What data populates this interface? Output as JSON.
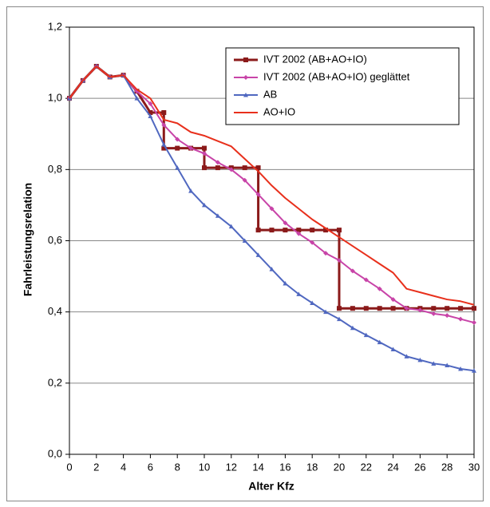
{
  "chart_data": {
    "type": "line",
    "xlabel": "Alter Kfz",
    "ylabel": "Fahrleistungsrelation",
    "xlim": [
      0,
      30
    ],
    "xticks": [
      0,
      2,
      4,
      6,
      8,
      10,
      12,
      14,
      16,
      18,
      20,
      22,
      24,
      26,
      28,
      30
    ],
    "ylim": [
      0,
      1.2
    ],
    "yticks": [
      {
        "value": 0,
        "label": "0,0"
      },
      {
        "value": 0.2,
        "label": "0,2"
      },
      {
        "value": 0.4,
        "label": "0,4"
      },
      {
        "value": 0.6,
        "label": "0,6"
      },
      {
        "value": 0.8,
        "label": "0,8"
      },
      {
        "value": 1.0,
        "label": "1,0"
      },
      {
        "value": 1.2,
        "label": "1,2"
      }
    ],
    "grid": true,
    "legend": "upper right",
    "series": [
      {
        "name": "IVT 2002 (AB+AO+IO)",
        "color": "#8b1a1a",
        "marker": "square",
        "x": [
          0,
          1,
          2,
          3,
          4,
          5,
          6,
          7,
          7,
          8,
          9,
          10,
          10,
          11,
          12,
          13,
          14,
          14,
          15,
          16,
          17,
          18,
          19,
          20,
          20,
          21,
          22,
          23,
          24,
          25,
          26,
          27,
          28,
          29,
          30
        ],
        "values": [
          1.0,
          1.05,
          1.09,
          1.06,
          1.065,
          1.02,
          0.96,
          0.96,
          0.86,
          0.86,
          0.86,
          0.86,
          0.805,
          0.805,
          0.805,
          0.805,
          0.805,
          0.63,
          0.63,
          0.63,
          0.63,
          0.63,
          0.63,
          0.63,
          0.41,
          0.41,
          0.41,
          0.41,
          0.41,
          0.41,
          0.41,
          0.41,
          0.41,
          0.41,
          0.41
        ]
      },
      {
        "name": "IVT 2002 (AB+AO+IO) geglättet",
        "color": "#c844a8",
        "marker": "diamond",
        "x": [
          0,
          1,
          2,
          3,
          4,
          5,
          6,
          7,
          8,
          9,
          10,
          11,
          12,
          13,
          14,
          15,
          16,
          17,
          18,
          19,
          20,
          21,
          22,
          23,
          24,
          25,
          26,
          27,
          28,
          29,
          30
        ],
        "values": [
          1.0,
          1.05,
          1.09,
          1.06,
          1.065,
          1.02,
          0.985,
          0.925,
          0.885,
          0.86,
          0.845,
          0.82,
          0.8,
          0.77,
          0.73,
          0.69,
          0.65,
          0.62,
          0.595,
          0.565,
          0.545,
          0.515,
          0.49,
          0.465,
          0.435,
          0.41,
          0.405,
          0.395,
          0.39,
          0.38,
          0.37
        ]
      },
      {
        "name": "AB",
        "color": "#5068c0",
        "marker": "triangle",
        "x": [
          0,
          1,
          2,
          3,
          4,
          5,
          6,
          7,
          8,
          9,
          10,
          11,
          12,
          13,
          14,
          15,
          16,
          17,
          18,
          19,
          20,
          21,
          22,
          23,
          24,
          25,
          26,
          27,
          28,
          29,
          30
        ],
        "values": [
          1.0,
          1.05,
          1.09,
          1.06,
          1.065,
          1.0,
          0.95,
          0.87,
          0.805,
          0.74,
          0.7,
          0.67,
          0.64,
          0.6,
          0.56,
          0.52,
          0.48,
          0.45,
          0.425,
          0.4,
          0.38,
          0.355,
          0.335,
          0.315,
          0.295,
          0.275,
          0.265,
          0.255,
          0.25,
          0.24,
          0.235
        ]
      },
      {
        "name": "AO+IO",
        "color": "#e8301c",
        "x": [
          0,
          1,
          2,
          3,
          4,
          5,
          6,
          7,
          8,
          9,
          10,
          11,
          12,
          13,
          14,
          15,
          16,
          17,
          18,
          19,
          20,
          21,
          22,
          23,
          24,
          25,
          26,
          27,
          28,
          29,
          30
        ],
        "values": [
          1.0,
          1.05,
          1.09,
          1.06,
          1.065,
          1.025,
          1.0,
          0.94,
          0.93,
          0.905,
          0.895,
          0.88,
          0.865,
          0.83,
          0.795,
          0.755,
          0.72,
          0.69,
          0.66,
          0.635,
          0.61,
          0.585,
          0.56,
          0.535,
          0.51,
          0.465,
          0.455,
          0.445,
          0.435,
          0.43,
          0.42
        ]
      }
    ]
  }
}
